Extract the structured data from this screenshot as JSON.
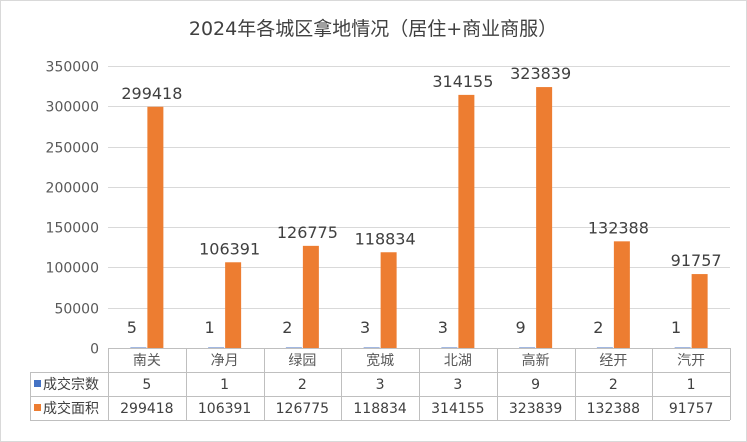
{
  "chart_data": {
    "type": "bar",
    "title": "2024年各城区拿地情况（居住+商业商服）",
    "categories": [
      "南关",
      "净月",
      "绿园",
      "宽城",
      "北湖",
      "高新",
      "经开",
      "汽开"
    ],
    "series": [
      {
        "name": "成交宗数",
        "values": [
          5,
          1,
          2,
          3,
          3,
          9,
          2,
          1
        ],
        "color": "#4472c4"
      },
      {
        "name": "成交面积",
        "values": [
          299418,
          106391,
          126775,
          118834,
          314155,
          323839,
          132388,
          91757
        ],
        "color": "#ed7d31"
      }
    ],
    "ylim": [
      0,
      350000
    ],
    "yticks": [
      0,
      50000,
      100000,
      150000,
      200000,
      250000,
      300000,
      350000
    ],
    "grid": true,
    "legend": "data-table"
  }
}
